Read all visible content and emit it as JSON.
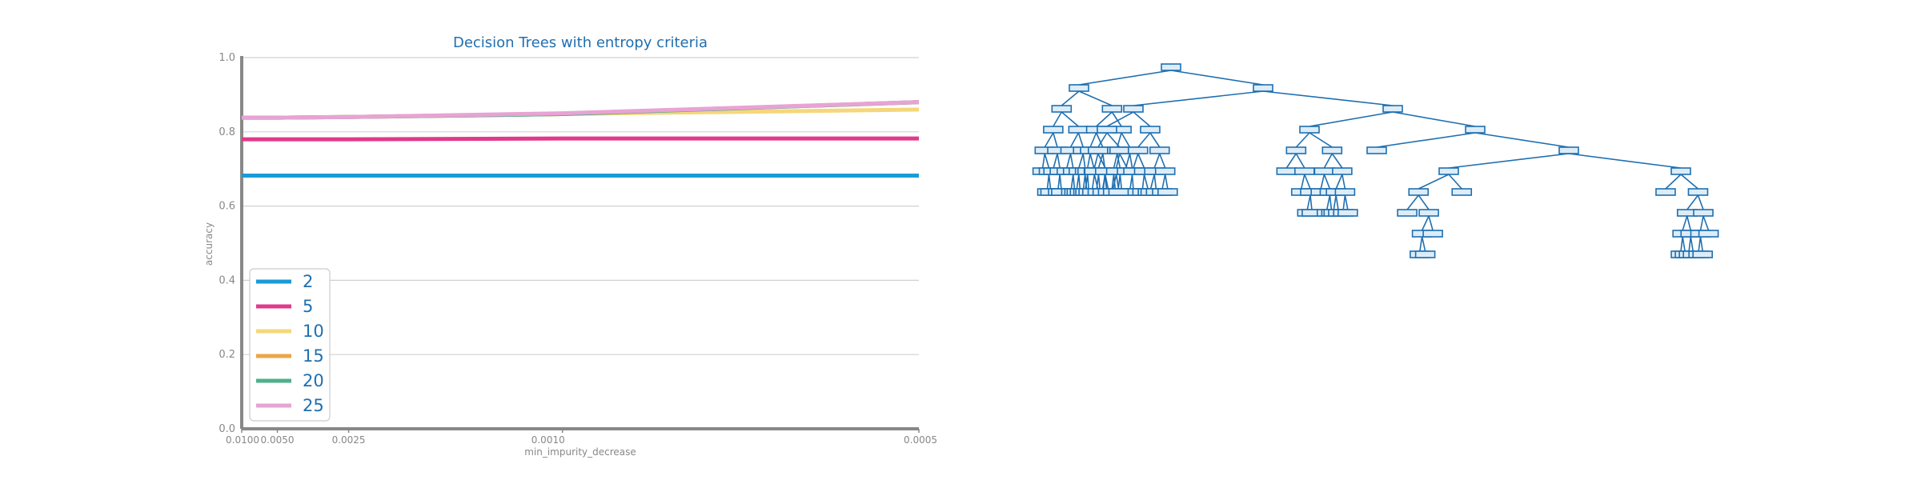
{
  "chart_data": {
    "type": "line",
    "title": "Decision Trees with entropy criteria",
    "xlabel": "min_impurity_decrease",
    "ylabel": "accuracy",
    "x_scale": "reciprocal",
    "x": [
      0.01,
      0.005,
      0.0025,
      0.001,
      0.0005
    ],
    "x_ticks": [
      "0.0100",
      "0.0050",
      "0.0025",
      "0.0010",
      "0.0005"
    ],
    "ylim": [
      0.0,
      1.0
    ],
    "y_ticks": [
      "0.0",
      "0.2",
      "0.4",
      "0.6",
      "0.8",
      "1.0"
    ],
    "grid": "horizontal",
    "legend_position": "bottom-left",
    "series": [
      {
        "name": "2",
        "color": "#1a9bd7",
        "values": [
          0.682,
          0.682,
          0.682,
          0.682,
          0.682
        ]
      },
      {
        "name": "5",
        "color": "#e03a8a",
        "values": [
          0.78,
          0.78,
          0.78,
          0.782,
          0.782
        ]
      },
      {
        "name": "10",
        "color": "#f5d77a",
        "values": [
          0.838,
          0.838,
          0.84,
          0.848,
          0.86
        ]
      },
      {
        "name": "15",
        "color": "#eba646",
        "values": [
          0.838,
          0.838,
          0.84,
          0.848,
          0.88
        ]
      },
      {
        "name": "20",
        "color": "#4fb08c",
        "values": [
          0.838,
          0.838,
          0.84,
          0.848,
          0.88
        ]
      },
      {
        "name": "25",
        "color": "#e8a3d4",
        "values": [
          0.838,
          0.838,
          0.84,
          0.85,
          0.88
        ]
      }
    ]
  },
  "tree_diagram": {
    "type": "decision-tree",
    "node_color": "#1f6fb0",
    "node_fill": "#dcecf8"
  },
  "colors": {
    "title": "#1f6fb0",
    "axis": "#888888",
    "grid": "#d0d0d0",
    "legend_text": "#1f6fb0"
  }
}
